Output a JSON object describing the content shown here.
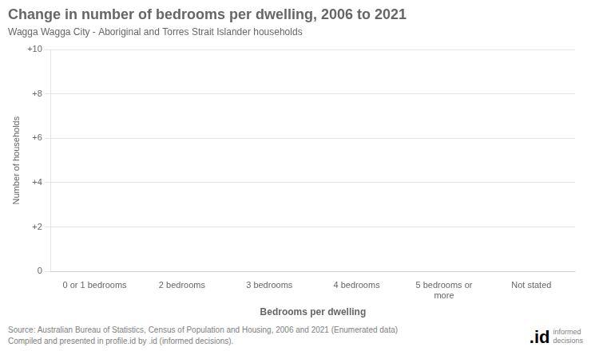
{
  "chart_data": {
    "type": "bar",
    "title": "Change in number of bedrooms per dwelling, 2006 to 2021",
    "subtitle": "Wagga Wagga City - Aboriginal and Torres Strait Islander households",
    "categories": [
      "0 or 1 bedrooms",
      "2 bedrooms",
      "3 bedrooms",
      "4 bedrooms",
      "5 bedrooms or\nmore",
      "Not stated"
    ],
    "values": [
      0,
      0,
      0,
      0,
      0,
      0
    ],
    "color": "#4472c4",
    "xlabel": "Bedrooms per dwelling",
    "ylabel": "Number of households",
    "ylim": [
      0,
      10
    ],
    "yticks": [
      0,
      {
        "value": 2,
        "label": "+2"
      },
      {
        "value": 4,
        "label": "+4"
      },
      {
        "value": 6,
        "label": "+6"
      },
      {
        "value": 8,
        "label": "+8"
      },
      {
        "value": 10,
        "label": "+10"
      }
    ],
    "grid": true,
    "annotations": [
      "Source: Australian Bureau of Statistics, Census of Population and Housing, 2006 and 2021 (Enumerated data)\nCompiled and presented in profile.id by .id (informed decisions).",
      ".id",
      "informed\ndecisions"
    ]
  }
}
